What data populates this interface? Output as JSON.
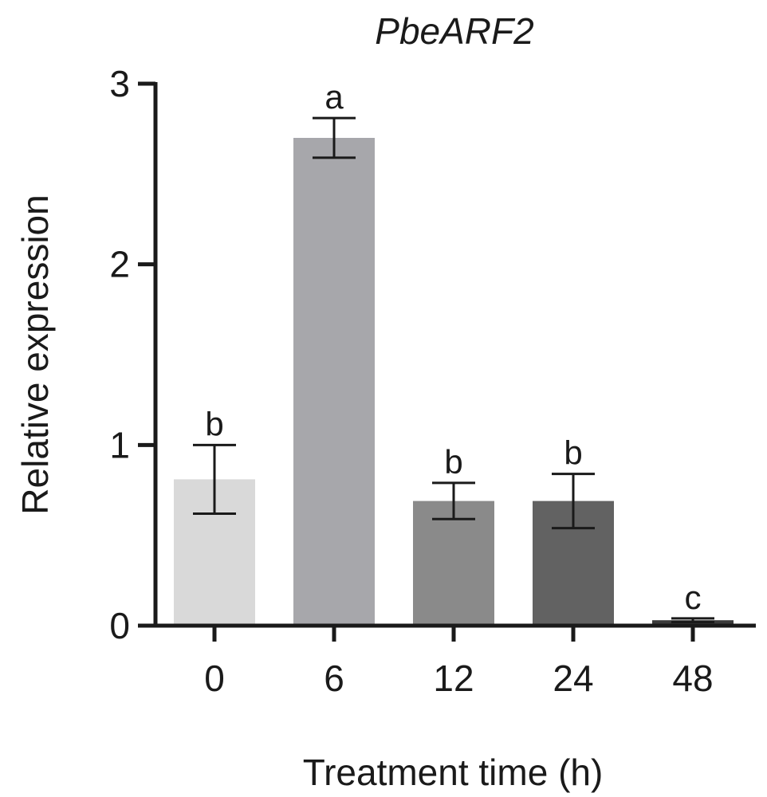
{
  "chart_data": {
    "type": "bar",
    "title": "PbeARF2",
    "xlabel": "Treatment time (h)",
    "ylabel": "Relative expression",
    "categories": [
      "0",
      "6",
      "12",
      "24",
      "48"
    ],
    "values": [
      0.81,
      2.7,
      0.69,
      0.69,
      0.03
    ],
    "errors": [
      0.19,
      0.11,
      0.1,
      0.15,
      0.01
    ],
    "significance": [
      "b",
      "a",
      "b",
      "b",
      "c"
    ],
    "bar_colors": [
      "#d9d9d9",
      "#a7a7ab",
      "#8a8a8a",
      "#626262",
      "#3a3a3a"
    ],
    "ylim": [
      0,
      3
    ],
    "yticks": [
      "0",
      "1",
      "2",
      "3"
    ],
    "grid": false
  }
}
